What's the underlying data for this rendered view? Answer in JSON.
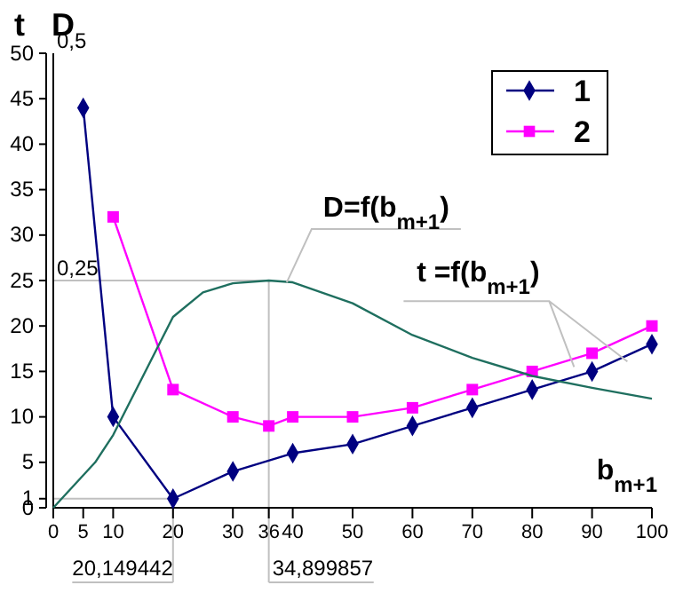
{
  "chart_data": {
    "type": "line",
    "ylabel": "t",
    "y2label": "D",
    "xlabel": "b$_{m+1}$",
    "xlim": [
      0,
      100
    ],
    "xticks": [
      0,
      5,
      10,
      20,
      30,
      {
        "value": 36,
        "label": "36"
      },
      40,
      50,
      60,
      70,
      80,
      90,
      100
    ],
    "ylim": [
      0,
      50
    ],
    "yticks": [
      0,
      1,
      5,
      10,
      15,
      20,
      25,
      30,
      35,
      40,
      45,
      50
    ],
    "y2lim": [
      0,
      0.5
    ],
    "y2ticks": [
      {
        "value": 0.25,
        "label": "0,25"
      },
      {
        "value": 0.5,
        "label": "0,5"
      }
    ],
    "series": [
      {
        "name": "1",
        "color": "#000080",
        "marker": "diamond",
        "x": [
          5,
          10,
          20,
          30,
          40,
          50,
          60,
          70,
          80,
          90,
          100
        ],
        "values": [
          44,
          10,
          1,
          4,
          6,
          7,
          9,
          11,
          13,
          15,
          18
        ]
      },
      {
        "name": "2",
        "color": "#ff00ff",
        "marker": "square",
        "x": [
          10,
          20,
          30,
          36,
          40,
          50,
          60,
          70,
          80,
          90,
          100
        ],
        "values": [
          32,
          13,
          10,
          9,
          10,
          10,
          11,
          13,
          15,
          17,
          20
        ]
      },
      {
        "color": "#1f6f5f",
        "marker": "none",
        "axis": "y2",
        "x": [
          0,
          7,
          10,
          15,
          20,
          25,
          30,
          36,
          40,
          50,
          60,
          70,
          80,
          90,
          100
        ],
        "values": [
          0,
          0.05,
          0.08,
          0.145,
          0.21,
          0.237,
          0.247,
          0.25,
          0.248,
          0.225,
          0.19,
          0.165,
          0.145,
          0.132,
          0.12
        ]
      }
    ],
    "ref_lines": [
      {
        "axis": "x",
        "value": 20,
        "label": "20,149442",
        "color": "#c0c0c0"
      },
      {
        "axis": "x",
        "value": 36,
        "label": "34,899857",
        "color": "#c0c0c0"
      },
      {
        "axis": "y",
        "value": 1,
        "color": "#c0c0c0"
      },
      {
        "axis": "y",
        "value": 25,
        "color": "#c0c0c0"
      }
    ],
    "annotations": [
      {
        "text": "D=f(b$_{m+1}$)",
        "x": 39,
        "y": 24.8
      },
      {
        "text": "t =f(b$_{m+1}$)",
        "x": 87,
        "y": 15.5
      }
    ],
    "legend": "top right"
  }
}
